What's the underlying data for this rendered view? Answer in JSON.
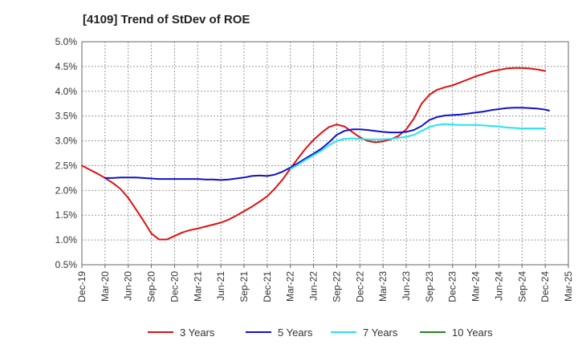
{
  "chart_data": {
    "type": "line",
    "title": "[4109]  Trend of StDev of ROE",
    "xlabel": "",
    "ylabel": "",
    "x_ticks": [
      "Dec-19",
      "Mar-20",
      "Jun-20",
      "Sep-20",
      "Dec-20",
      "Mar-21",
      "Jun-21",
      "Sep-21",
      "Dec-21",
      "Mar-22",
      "Jun-22",
      "Sep-22",
      "Dec-22",
      "Mar-23",
      "Jun-23",
      "Sep-23",
      "Dec-23",
      "Mar-24",
      "Jun-24",
      "Sep-24",
      "Dec-24",
      "Mar-25"
    ],
    "y_ticks": [
      "0.5%",
      "1.0%",
      "1.5%",
      "2.0%",
      "2.5%",
      "3.0%",
      "3.5%",
      "4.0%",
      "4.5%",
      "5.0%"
    ],
    "ylim": [
      0.5,
      5.0
    ],
    "y_unit": "%",
    "grid": true,
    "legend_position": "bottom",
    "series": [
      {
        "name": "3 Years",
        "color": "#dd1111",
        "points": [
          [
            "Dec-19",
            2.5
          ],
          [
            "Jan-20",
            2.42
          ],
          [
            "Feb-20",
            2.34
          ],
          [
            "Mar-20",
            2.25
          ],
          [
            "Apr-20",
            2.15
          ],
          [
            "May-20",
            2.03
          ],
          [
            "Jun-20",
            1.85
          ],
          [
            "Jul-20",
            1.62
          ],
          [
            "Aug-20",
            1.38
          ],
          [
            "Sep-20",
            1.13
          ],
          [
            "Oct-20",
            1.01
          ],
          [
            "Nov-20",
            1.01
          ],
          [
            "Dec-20",
            1.08
          ],
          [
            "Jan-21",
            1.15
          ],
          [
            "Feb-21",
            1.2
          ],
          [
            "Mar-21",
            1.23
          ],
          [
            "Apr-21",
            1.27
          ],
          [
            "May-21",
            1.31
          ],
          [
            "Jun-21",
            1.35
          ],
          [
            "Jul-21",
            1.41
          ],
          [
            "Aug-21",
            1.49
          ],
          [
            "Sep-21",
            1.58
          ],
          [
            "Oct-21",
            1.67
          ],
          [
            "Nov-21",
            1.77
          ],
          [
            "Dec-21",
            1.88
          ],
          [
            "Jan-22",
            2.04
          ],
          [
            "Feb-22",
            2.22
          ],
          [
            "Mar-22",
            2.44
          ],
          [
            "Apr-22",
            2.65
          ],
          [
            "May-22",
            2.85
          ],
          [
            "Jun-22",
            3.02
          ],
          [
            "Jul-22",
            3.16
          ],
          [
            "Aug-22",
            3.28
          ],
          [
            "Sep-22",
            3.33
          ],
          [
            "Oct-22",
            3.29
          ],
          [
            "Nov-22",
            3.18
          ],
          [
            "Dec-22",
            3.07
          ],
          [
            "Jan-23",
            3.0
          ],
          [
            "Feb-23",
            2.97
          ],
          [
            "Mar-23",
            2.99
          ],
          [
            "Apr-23",
            3.03
          ],
          [
            "May-23",
            3.1
          ],
          [
            "Jun-23",
            3.23
          ],
          [
            "Jul-23",
            3.45
          ],
          [
            "Aug-23",
            3.75
          ],
          [
            "Sep-23",
            3.93
          ],
          [
            "Oct-23",
            4.03
          ],
          [
            "Nov-23",
            4.08
          ],
          [
            "Dec-23",
            4.12
          ],
          [
            "Jan-24",
            4.18
          ],
          [
            "Feb-24",
            4.24
          ],
          [
            "Mar-24",
            4.3
          ],
          [
            "Apr-24",
            4.35
          ],
          [
            "May-24",
            4.4
          ],
          [
            "Jun-24",
            4.43
          ],
          [
            "Jul-24",
            4.46
          ],
          [
            "Aug-24",
            4.47
          ],
          [
            "Sep-24",
            4.47
          ],
          [
            "Oct-24",
            4.46
          ],
          [
            "Nov-24",
            4.44
          ],
          [
            "Dec-24",
            4.41
          ]
        ]
      },
      {
        "name": "5 Years",
        "color": "#1111cc",
        "points": [
          [
            "Dec-19",
            null
          ],
          [
            "Mar-20",
            2.25
          ],
          [
            "Apr-20",
            2.25
          ],
          [
            "May-20",
            2.26
          ],
          [
            "Jun-20",
            2.26
          ],
          [
            "Jul-20",
            2.26
          ],
          [
            "Aug-20",
            2.25
          ],
          [
            "Sep-20",
            2.24
          ],
          [
            "Oct-20",
            2.23
          ],
          [
            "Nov-20",
            2.23
          ],
          [
            "Dec-20",
            2.23
          ],
          [
            "Jan-21",
            2.23
          ],
          [
            "Feb-21",
            2.23
          ],
          [
            "Mar-21",
            2.23
          ],
          [
            "Apr-21",
            2.22
          ],
          [
            "May-21",
            2.22
          ],
          [
            "Jun-21",
            2.21
          ],
          [
            "Jul-21",
            2.22
          ],
          [
            "Aug-21",
            2.24
          ],
          [
            "Sep-21",
            2.26
          ],
          [
            "Oct-21",
            2.29
          ],
          [
            "Nov-21",
            2.3
          ],
          [
            "Dec-21",
            2.29
          ],
          [
            "Jan-22",
            2.32
          ],
          [
            "Feb-22",
            2.38
          ],
          [
            "Mar-22",
            2.46
          ],
          [
            "Apr-22",
            2.55
          ],
          [
            "May-22",
            2.65
          ],
          [
            "Jun-22",
            2.74
          ],
          [
            "Jul-22",
            2.84
          ],
          [
            "Aug-22",
            2.97
          ],
          [
            "Sep-22",
            3.12
          ],
          [
            "Oct-22",
            3.2
          ],
          [
            "Nov-22",
            3.23
          ],
          [
            "Dec-22",
            3.23
          ],
          [
            "Jan-23",
            3.22
          ],
          [
            "Feb-23",
            3.2
          ],
          [
            "Mar-23",
            3.18
          ],
          [
            "Apr-23",
            3.17
          ],
          [
            "May-23",
            3.17
          ],
          [
            "Jun-23",
            3.18
          ],
          [
            "Jul-23",
            3.22
          ],
          [
            "Aug-23",
            3.3
          ],
          [
            "Sep-23",
            3.42
          ],
          [
            "Oct-23",
            3.48
          ],
          [
            "Nov-23",
            3.51
          ],
          [
            "Dec-23",
            3.52
          ],
          [
            "Jan-24",
            3.53
          ],
          [
            "Feb-24",
            3.55
          ],
          [
            "Mar-24",
            3.57
          ],
          [
            "Apr-24",
            3.59
          ],
          [
            "May-24",
            3.62
          ],
          [
            "Jun-24",
            3.64
          ],
          [
            "Jul-24",
            3.66
          ],
          [
            "Aug-24",
            3.67
          ],
          [
            "Sep-24",
            3.67
          ],
          [
            "Oct-24",
            3.66
          ],
          [
            "Nov-24",
            3.65
          ],
          [
            "Dec-24",
            3.63
          ],
          [
            "Dec-24b",
            3.61
          ]
        ]
      },
      {
        "name": "7 Years",
        "color": "#22e5ee",
        "points": [
          [
            "Mar-22",
            2.43
          ],
          [
            "Apr-22",
            2.52
          ],
          [
            "May-22",
            2.62
          ],
          [
            "Jun-22",
            2.71
          ],
          [
            "Jul-22",
            2.8
          ],
          [
            "Aug-22",
            2.91
          ],
          [
            "Sep-22",
            3.0
          ],
          [
            "Oct-22",
            3.04
          ],
          [
            "Nov-22",
            3.05
          ],
          [
            "Dec-22",
            3.04
          ],
          [
            "Jan-23",
            3.03
          ],
          [
            "Feb-23",
            3.03
          ],
          [
            "Mar-23",
            3.03
          ],
          [
            "Apr-23",
            3.04
          ],
          [
            "May-23",
            3.06
          ],
          [
            "Jun-23",
            3.08
          ],
          [
            "Jul-23",
            3.12
          ],
          [
            "Aug-23",
            3.2
          ],
          [
            "Sep-23",
            3.28
          ],
          [
            "Oct-23",
            3.32
          ],
          [
            "Nov-23",
            3.34
          ],
          [
            "Dec-23",
            3.33
          ],
          [
            "Jan-24",
            3.32
          ],
          [
            "Feb-24",
            3.32
          ],
          [
            "Mar-24",
            3.32
          ],
          [
            "Apr-24",
            3.31
          ],
          [
            "May-24",
            3.3
          ],
          [
            "Jun-24",
            3.29
          ],
          [
            "Jul-24",
            3.27
          ],
          [
            "Aug-24",
            3.26
          ],
          [
            "Sep-24",
            3.25
          ],
          [
            "Oct-24",
            3.25
          ],
          [
            "Nov-24",
            3.25
          ],
          [
            "Dec-24",
            3.25
          ]
        ]
      },
      {
        "name": "10 Years",
        "color": "#228822",
        "points": []
      }
    ]
  }
}
